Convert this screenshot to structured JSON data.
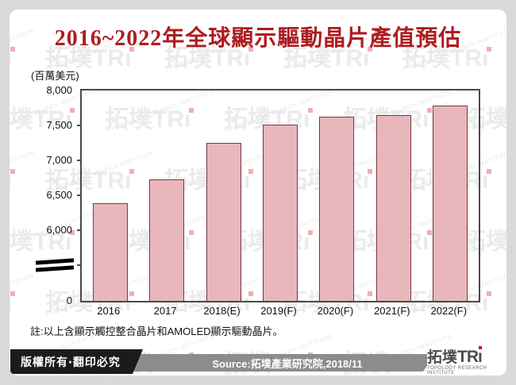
{
  "chart_data": {
    "type": "bar",
    "title": "2016~2022年全球顯示驅動晶片產值預估",
    "unit_label": "(百萬美元)",
    "categories": [
      "2016",
      "2017",
      "2018(E)",
      "2019(F)",
      "2020(F)",
      "2021(F)",
      "2022(F)"
    ],
    "values": [
      6390,
      6730,
      7250,
      7510,
      7620,
      7650,
      7780
    ],
    "y_ticks": [
      {
        "label": "8,000",
        "value": 8000
      },
      {
        "label": "7,500",
        "value": 7500
      },
      {
        "label": "7,000",
        "value": 7000
      },
      {
        "label": "6,500",
        "value": 6500
      },
      {
        "label": "6,000",
        "value": 6000
      },
      {
        "label": "0",
        "value": 0
      }
    ],
    "ylim": [
      0,
      8000
    ],
    "axis_break": true,
    "axis_break_between": [
      0,
      6000
    ],
    "grid": false,
    "legend": false,
    "bar_fill": "#E8B7BB",
    "bar_border": "#7A393D",
    "title_color": "#AE1C20"
  },
  "note": "註:以上含顯示觸控整合晶片和AMOLED顯示驅動晶片。",
  "footer": {
    "copyright": "版權所有‧翻印必究",
    "source": "Source:拓墣產業研究院,2018/11"
  },
  "logo": {
    "cn": "拓墣",
    "latin": "TR",
    "i": "ı",
    "sub": "TOPOLOGY RESEARCH INSTITUTE",
    "accent": "#E3001B"
  },
  "watermark": {
    "cn": "拓墣",
    "latin": "TRı",
    "sub": "TOPOLOGY RESEARCH INSTITUTE"
  }
}
